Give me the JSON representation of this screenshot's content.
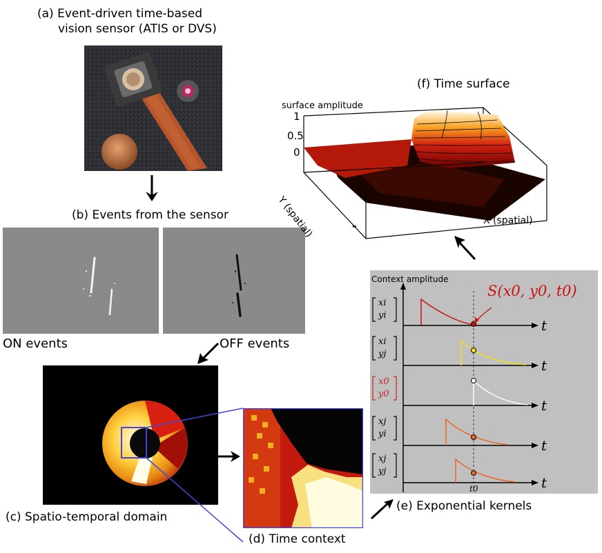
{
  "panel_a": {
    "caption_line1": "(a) Event-driven time-based",
    "caption_line2": "vision sensor (ATIS or DVS)"
  },
  "panel_b": {
    "caption": "(b) Events from the sensor",
    "on_label": "ON events",
    "off_label": "OFF events"
  },
  "panel_c": {
    "caption": "(c) Spatio-temporal domain"
  },
  "panel_d": {
    "caption": "(d) Time context"
  },
  "panel_e": {
    "caption": "(e) Exponential kernels",
    "y_axis_label": "Context amplitude",
    "annotation": "S(x0, y0, t0)",
    "axis_var": "t",
    "tick_label": "t0",
    "rows": [
      {
        "top": "xi",
        "bottom": "yi",
        "color": "#cc1111"
      },
      {
        "top": "xi",
        "bottom": "yj",
        "color": "#f0e020"
      },
      {
        "top": "x0",
        "bottom": "y0",
        "color": "#ffffff"
      },
      {
        "top": "xj",
        "bottom": "yi",
        "color": "#ee6622"
      },
      {
        "top": "xj",
        "bottom": "yj",
        "color": "#ee6622"
      }
    ]
  },
  "panel_f": {
    "caption": "(f) Time surface",
    "z_axis_label": "surface amplitude",
    "z_ticks": [
      "1",
      "0.5",
      "0"
    ],
    "y_axis_label": "Y (spatial)",
    "x_axis_label": "X (spatial)",
    "minus_sign": "-"
  }
}
